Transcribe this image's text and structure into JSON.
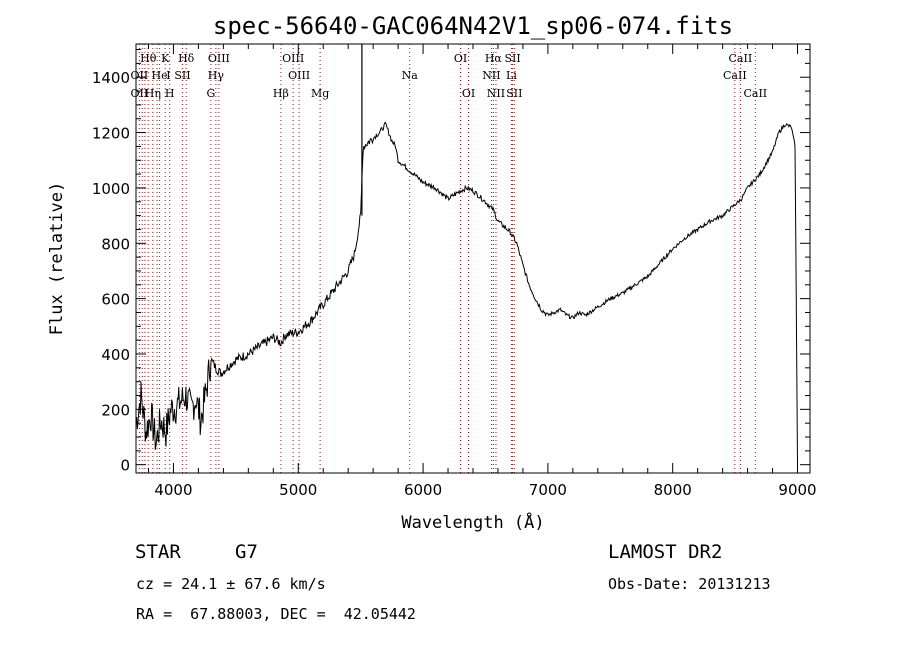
{
  "chart_data": {
    "type": "line",
    "title": "spec-56640-GAC064N42V1_sp06-074.fits",
    "xlabel": "Wavelength (Å)",
    "ylabel": "Flux (relative)",
    "xlim": [
      3700,
      9100
    ],
    "ylim": [
      -30,
      1520
    ],
    "xticks": [
      4000,
      5000,
      6000,
      7000,
      8000,
      9000
    ],
    "yticks": [
      0,
      200,
      400,
      600,
      800,
      1000,
      1200,
      1400
    ],
    "grid": false,
    "series": [
      {
        "color": "#000000",
        "x": [
          3700,
          3740,
          3780,
          3820,
          3860,
          3900,
          3940,
          3980,
          4020,
          4060,
          4100,
          4140,
          4180,
          4220,
          4260,
          4300,
          4340,
          4380,
          4450,
          4500,
          4600,
          4700,
          4800,
          4860,
          4900,
          5000,
          5100,
          5200,
          5300,
          5400,
          5450,
          5500,
          5520,
          5600,
          5650,
          5700,
          5750,
          5780,
          5800,
          5850,
          5900,
          5950,
          6000,
          6100,
          6200,
          6300,
          6350,
          6400,
          6450,
          6500,
          6563,
          6600,
          6700,
          6750,
          6800,
          6850,
          6900,
          6950,
          7000,
          7050,
          7100,
          7150,
          7200,
          7250,
          7300,
          7400,
          7500,
          7600,
          7700,
          7800,
          7900,
          8000,
          8100,
          8200,
          8300,
          8400,
          8500,
          8550,
          8600,
          8700,
          8800,
          8850,
          8900,
          8950,
          8980,
          9000
        ],
        "y": [
          150,
          250,
          120,
          180,
          80,
          160,
          120,
          200,
          210,
          230,
          250,
          200,
          240,
          160,
          260,
          380,
          350,
          330,
          360,
          380,
          400,
          430,
          460,
          440,
          470,
          480,
          520,
          580,
          640,
          700,
          760,
          900,
          1150,
          1180,
          1200,
          1230,
          1170,
          1150,
          1100,
          1080,
          1060,
          1040,
          1020,
          1000,
          960,
          990,
          1000,
          990,
          970,
          950,
          920,
          880,
          840,
          800,
          720,
          650,
          600,
          560,
          540,
          550,
          560,
          540,
          530,
          550,
          540,
          570,
          600,
          620,
          650,
          680,
          730,
          780,
          820,
          850,
          880,
          900,
          940,
          960,
          1000,
          1050,
          1130,
          1200,
          1230,
          1220,
          1150,
          0
        ]
      }
    ],
    "lines": {
      "color": "#cc0000",
      "waves": [
        3727,
        3750,
        3771,
        3798,
        3835,
        3869,
        3889,
        3934,
        3970,
        4072,
        4102,
        4300,
        4340,
        4364,
        4861,
        4959,
        5007,
        5175,
        5893,
        6300,
        6364,
        6548,
        6563,
        6584,
        6708,
        6717,
        6731,
        8498,
        8542,
        8662
      ],
      "top_labels": [
        {
          "t": "Hθ",
          "x": 3798
        },
        {
          "t": "K",
          "x": 3934
        },
        {
          "t": "Hδ",
          "x": 4102
        },
        {
          "t": "OIII",
          "x": 4364
        },
        {
          "t": "OIII",
          "x": 4959
        },
        {
          "t": "OI",
          "x": 6300
        },
        {
          "t": "Hα",
          "x": 6563
        },
        {
          "t": "SII",
          "x": 6717
        },
        {
          "t": "CaII",
          "x": 8542
        }
      ],
      "mid_labels": [
        {
          "t": "OII",
          "x": 3727
        },
        {
          "t": "He",
          "x": 3889
        },
        {
          "t": "I",
          "x": 3960
        },
        {
          "t": "SII",
          "x": 4072
        },
        {
          "t": "Hγ",
          "x": 4340
        },
        {
          "t": "OIII",
          "x": 5007
        },
        {
          "t": "Na",
          "x": 5893
        },
        {
          "t": "NII",
          "x": 6548
        },
        {
          "t": "Li",
          "x": 6708
        },
        {
          "t": "CaII",
          "x": 8498
        }
      ],
      "bot_labels": [
        {
          "t": "OII",
          "x": 3727
        },
        {
          "t": "Hη",
          "x": 3835
        },
        {
          "t": "H",
          "x": 3970
        },
        {
          "t": "G",
          "x": 4300
        },
        {
          "t": "Hβ",
          "x": 4861
        },
        {
          "t": "Mg",
          "x": 5175
        },
        {
          "t": "OI",
          "x": 6364
        },
        {
          "t": "NII",
          "x": 6584
        },
        {
          "t": "SII",
          "x": 6731
        },
        {
          "t": "CaII",
          "x": 8662
        }
      ]
    }
  },
  "info": {
    "class_label": "STAR",
    "subclass": "G7",
    "survey": "LAMOST DR2",
    "cz": "cz = 24.1 ± 67.6 km/s",
    "obs_date": "Obs-Date: 20131213",
    "coords": "RA =  67.88003, DEC =  42.05442"
  }
}
